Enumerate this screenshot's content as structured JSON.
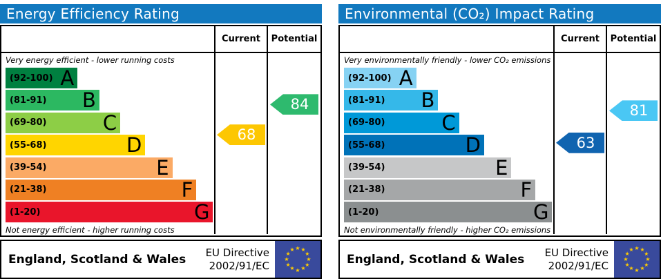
{
  "chart_data": [
    {
      "type": "bar",
      "title": "Energy Efficiency Rating",
      "header_color": "#1279bf",
      "columns": {
        "current": "Current",
        "potential": "Potential"
      },
      "top_caption": "Very energy efficient - lower running costs",
      "bottom_caption": "Not energy efficient - higher running costs",
      "bands": [
        {
          "letter": "A",
          "label": "(92-100)",
          "min": 92,
          "max": 100,
          "color": "#008040",
          "width_pct": 34.5
        },
        {
          "letter": "B",
          "label": "(81-91)",
          "min": 81,
          "max": 91,
          "color": "#2cb861",
          "width_pct": 45
        },
        {
          "letter": "C",
          "label": "(69-80)",
          "min": 69,
          "max": 80,
          "color": "#8dce46",
          "width_pct": 55
        },
        {
          "letter": "D",
          "label": "(55-68)",
          "min": 55,
          "max": 68,
          "color": "#ffd500",
          "width_pct": 67
        },
        {
          "letter": "E",
          "label": "(39-54)",
          "min": 39,
          "max": 54,
          "color": "#fbaa65",
          "width_pct": 80
        },
        {
          "letter": "F",
          "label": "(21-38)",
          "min": 21,
          "max": 38,
          "color": "#ef8023",
          "width_pct": 91.5
        },
        {
          "letter": "G",
          "label": "(1-20)",
          "min": 1,
          "max": 20,
          "color": "#e9152b",
          "width_pct": 99.5
        }
      ],
      "current": {
        "value": 68,
        "color": "#fdc702"
      },
      "potential": {
        "value": 84,
        "color": "#2eba6e"
      },
      "footer": {
        "region": "England, Scotland & Wales",
        "directive_line1": "EU Directive",
        "directive_line2": "2002/91/EC",
        "flag_background": "#394a9c",
        "flag_star_color": "#ffcc00"
      }
    },
    {
      "type": "bar",
      "title": "Environmental (CO₂) Impact Rating",
      "header_color": "#1279bf",
      "columns": {
        "current": "Current",
        "potential": "Potential"
      },
      "top_caption": "Very environmentally friendly - lower CO₂ emissions",
      "bottom_caption": "Not environmentally friendly - higher CO₂ emissions",
      "bands": [
        {
          "letter": "A",
          "label": "(92-100)",
          "min": 92,
          "max": 100,
          "color": "#86d2f3",
          "width_pct": 34.5
        },
        {
          "letter": "B",
          "label": "(81-91)",
          "min": 81,
          "max": 91,
          "color": "#35b8e9",
          "width_pct": 45
        },
        {
          "letter": "C",
          "label": "(69-80)",
          "min": 69,
          "max": 80,
          "color": "#0099d8",
          "width_pct": 55
        },
        {
          "letter": "D",
          "label": "(55-68)",
          "min": 55,
          "max": 68,
          "color": "#0072b8",
          "width_pct": 67
        },
        {
          "letter": "E",
          "label": "(39-54)",
          "min": 39,
          "max": 54,
          "color": "#c6c7c8",
          "width_pct": 80
        },
        {
          "letter": "F",
          "label": "(21-38)",
          "min": 21,
          "max": 38,
          "color": "#a5a7a8",
          "width_pct": 91.5
        },
        {
          "letter": "G",
          "label": "(1-20)",
          "min": 1,
          "max": 20,
          "color": "#8b8f90",
          "width_pct": 99.5
        }
      ],
      "current": {
        "value": 63,
        "color": "#1064b0"
      },
      "potential": {
        "value": 81,
        "color": "#4ac7f4"
      },
      "footer": {
        "region": "England, Scotland & Wales",
        "directive_line1": "EU Directive",
        "directive_line2": "2002/91/EC",
        "flag_background": "#394a9c",
        "flag_star_color": "#ffcc00"
      }
    }
  ]
}
